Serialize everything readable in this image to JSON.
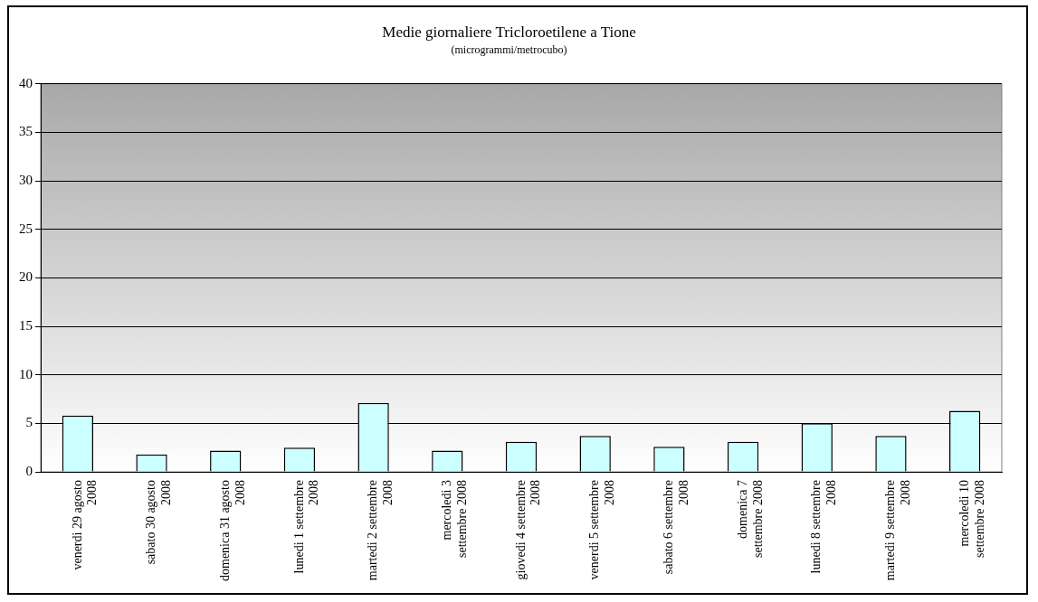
{
  "chart_data": {
    "type": "bar",
    "title": "Medie giornaliere Tricloroetilene a Tione",
    "subtitle": "(microgrammi/metrocubo)",
    "categories": [
      "venerdi 29 agosto 2008",
      "sabato 30 agosto 2008",
      "domenica 31 agosto 2008",
      "lunedi 1 settembre 2008",
      "martedi 2 settembre 2008",
      "mercoledi 3 settembre 2008",
      "giovedi 4 settembre 2008",
      "venerdi 5 settembre 2008",
      "sabato 6 settembre 2008",
      "domenica 7 settembre 2008",
      "lunedi 8 settembre 2008",
      "martedi 9 settembre 2008",
      "mercoledi 10 settembre 2008"
    ],
    "values": [
      5.8,
      1.8,
      2.2,
      2.5,
      7.1,
      2.2,
      3.1,
      3.7,
      2.6,
      3.1,
      5.0,
      3.7,
      6.3
    ],
    "color": "#ccffff",
    "ylim": [
      0,
      40
    ],
    "yticks": [
      0,
      5,
      10,
      15,
      20,
      25,
      30,
      35,
      40
    ],
    "grid": "y",
    "legend": false
  }
}
